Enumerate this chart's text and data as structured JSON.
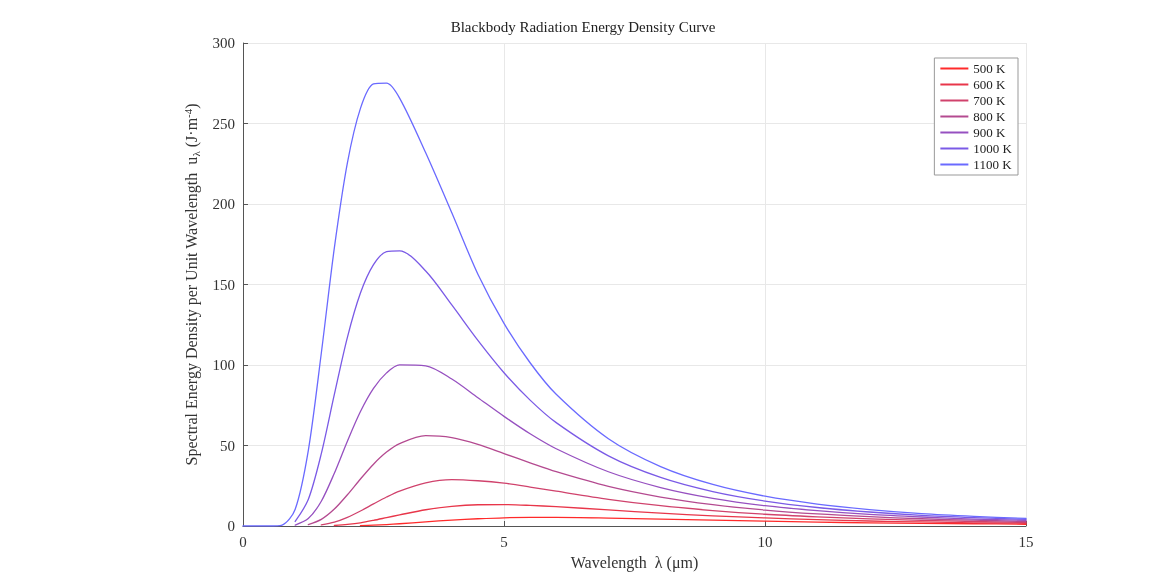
{
  "chart_data": {
    "type": "line",
    "title": "Blackbody Radiation Energy Density Curve",
    "xlabel": "Wavelength  λ (μm)",
    "ylabel": "Spectral Energy Density per Unit Wavelength  u$_{λ}$ (J·m$^{-4}$)",
    "series": [
      {
        "name": "500 K",
        "color": "#ff2a2a",
        "x": [
          2.25,
          2.5,
          2.75,
          3,
          3.5,
          4,
          4.5,
          5,
          5.5,
          6,
          7,
          8,
          9,
          10,
          11,
          12,
          13,
          14,
          15
        ],
        "values": [
          0.2,
          0.5,
          0.9,
          1.4,
          2.6,
          3.7,
          4.5,
          5.1,
          5.3,
          5.3,
          4.9,
          4.3,
          3.6,
          3.0,
          2.4,
          2.0,
          1.6,
          1.4,
          1.1
        ]
      },
      {
        "name": "600 K",
        "color": "#e8364a",
        "x": [
          1.75,
          2,
          2.25,
          2.5,
          2.75,
          3,
          3.5,
          4,
          4.5,
          5,
          5.5,
          6,
          7,
          8,
          9,
          10,
          11,
          12,
          13,
          14,
          15
        ],
        "values": [
          0.3,
          1.0,
          2.0,
          3.5,
          5.2,
          6.9,
          10.1,
          12.2,
          13.2,
          13.3,
          12.8,
          12.0,
          10.0,
          8.0,
          6.3,
          5.0,
          4.0,
          3.1,
          2.5,
          2.0,
          1.7
        ]
      },
      {
        "name": "700 K",
        "color": "#d0426c",
        "x": [
          1.5,
          1.75,
          2,
          2.25,
          2.5,
          2.75,
          3,
          3.5,
          4,
          4.5,
          5,
          5.5,
          6,
          7,
          8,
          9,
          10,
          11,
          12,
          13,
          14,
          15
        ],
        "values": [
          0.7,
          2.4,
          5.4,
          9.3,
          13.7,
          18.0,
          21.7,
          26.8,
          28.8,
          28.1,
          26.6,
          24.2,
          21.6,
          16.6,
          12.6,
          9.6,
          7.3,
          5.7,
          4.4,
          3.5,
          2.8,
          2.2
        ]
      },
      {
        "name": "800 K",
        "color": "#b44a90",
        "x": [
          1.25,
          1.5,
          1.75,
          2,
          2.25,
          2.5,
          2.75,
          3,
          3.5,
          4,
          4.5,
          5,
          5.5,
          6,
          7,
          8,
          9,
          10,
          11,
          12,
          13,
          14,
          15
        ],
        "values": [
          0.9,
          4.1,
          10.5,
          19.4,
          29.2,
          38.4,
          45.9,
          51.2,
          56.1,
          54.9,
          50.7,
          45.0,
          39.2,
          33.7,
          24.6,
          18.0,
          13.3,
          9.9,
          7.5,
          5.8,
          4.5,
          3.6,
          2.8
        ]
      },
      {
        "name": "900 K",
        "color": "#9650c0",
        "x": [
          1,
          1.25,
          1.5,
          1.75,
          2,
          2.25,
          2.5,
          2.75,
          3,
          3.5,
          4,
          4.5,
          5,
          5.5,
          6,
          7,
          8,
          9,
          10,
          11,
          12,
          13,
          14,
          15
        ],
        "values": [
          0.6,
          4.6,
          15.4,
          32.8,
          52.7,
          71.1,
          85.5,
          95.1,
          100.1,
          99.5,
          91.3,
          79.7,
          68.1,
          57.3,
          48.0,
          33.7,
          23.9,
          17.2,
          12.6,
          9.5,
          7.2,
          5.6,
          4.3,
          3.5
        ]
      },
      {
        "name": "1000 K",
        "color": "#7a5ae6",
        "x": [
          1,
          1.25,
          1.5,
          1.75,
          2,
          2.25,
          2.5,
          2.75,
          3,
          3.5,
          4,
          4.5,
          5,
          5.5,
          6,
          7,
          8,
          9,
          10,
          11,
          12,
          13,
          14,
          15
        ],
        "values": [
          2.8,
          16.4,
          44.9,
          81.7,
          117.2,
          144.7,
          162.3,
          170.4,
          170.9,
          158.4,
          137.3,
          115.3,
          95.2,
          78.2,
          64.2,
          43.6,
          30.2,
          21.4,
          15.5,
          11.5,
          8.7,
          6.6,
          5.2,
          4.1
        ]
      },
      {
        "name": "1100 K",
        "color": "#6a6aff",
        "x": [
          0,
          0.5,
          0.75,
          1,
          1.25,
          1.5,
          1.75,
          2,
          2.25,
          2.5,
          2.75,
          3,
          3.5,
          4,
          4.5,
          5,
          5.5,
          6,
          7,
          8,
          9,
          10,
          11,
          12,
          13,
          14,
          15
        ],
        "values": [
          0,
          0,
          0.6,
          10.4,
          46.7,
          107.3,
          172.7,
          225.5,
          259.4,
          274.6,
          275.1,
          265.8,
          231.8,
          194.5,
          156.4,
          125.9,
          101.4,
          81.8,
          54.2,
          36.9,
          25.8,
          18.5,
          13.6,
          10.2,
          7.7,
          6.0,
          4.7
        ]
      }
    ],
    "xlim": [
      0,
      15
    ],
    "xticks": [
      0,
      5,
      10,
      15
    ],
    "ylim": [
      0,
      300
    ],
    "yticks": [
      0,
      50,
      100,
      150,
      200,
      250,
      300
    ],
    "grid": true,
    "legend": "top right",
    "marker": "none",
    "line_style": "solid"
  }
}
